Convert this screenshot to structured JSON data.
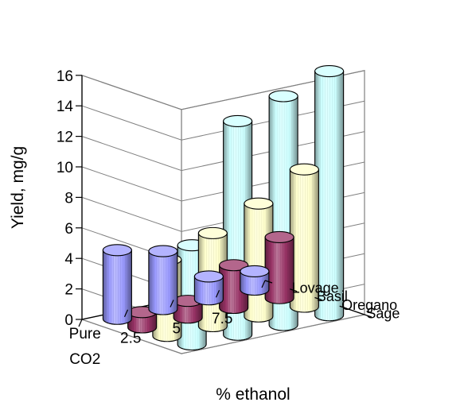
{
  "chart_data": {
    "type": "bar",
    "variant": "3d-cylinder",
    "xlabel": "% ethanol",
    "ylabel": "Yield, mg/g",
    "categories": [
      [
        "Pure",
        "CO2"
      ],
      [
        "2.5"
      ],
      [
        "5"
      ],
      [
        "7.5"
      ]
    ],
    "ylim": [
      0,
      16
    ],
    "yticks": [
      "0",
      "2",
      "4",
      "6",
      "8",
      "10",
      "12",
      "14",
      "16"
    ],
    "grid": true,
    "series": [
      {
        "name": "Lovage",
        "color": "#9999ff",
        "values": [
          4.5,
          3.8,
          1.5,
          1.2
        ]
      },
      {
        "name": "Basil",
        "color": "#993366",
        "values": [
          1.0,
          1.1,
          2.8,
          4.0
        ]
      },
      {
        "name": "Oregano",
        "color": "#ffffcc",
        "values": [
          5.0,
          6.1,
          7.4,
          9.0
        ]
      },
      {
        "name": "Sage",
        "color": "#ccffff",
        "values": [
          6.5,
          14.0,
          15.0,
          16.0
        ]
      }
    ]
  }
}
